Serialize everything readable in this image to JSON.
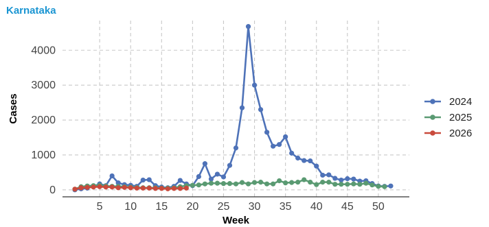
{
  "chart_data": {
    "type": "line",
    "title": "Karnataka",
    "xlabel": "Week",
    "ylabel": "Cases",
    "xlim": [
      -1,
      55
    ],
    "ylim": [
      -200,
      4850
    ],
    "x_ticks": [
      5,
      10,
      15,
      20,
      25,
      30,
      35,
      40,
      45,
      50
    ],
    "y_ticks": [
      0,
      1000,
      2000,
      3000,
      4000
    ],
    "grid": true,
    "legend_position": "right",
    "series": [
      {
        "name": "2024",
        "color": "#4e72b8",
        "x": [
          1,
          2,
          3,
          4,
          5,
          6,
          7,
          8,
          9,
          10,
          11,
          12,
          13,
          14,
          15,
          16,
          17,
          18,
          19,
          20,
          21,
          22,
          23,
          24,
          25,
          26,
          27,
          28,
          29,
          30,
          31,
          32,
          33,
          34,
          35,
          36,
          37,
          38,
          39,
          40,
          41,
          42,
          43,
          44,
          45,
          46,
          47,
          48,
          49,
          50,
          51,
          52
        ],
        "y": [
          0,
          30,
          50,
          100,
          170,
          120,
          400,
          200,
          150,
          130,
          100,
          280,
          290,
          120,
          80,
          60,
          100,
          270,
          170,
          120,
          380,
          750,
          310,
          450,
          370,
          700,
          1200,
          2350,
          4680,
          3000,
          2300,
          1650,
          1250,
          1300,
          1520,
          1050,
          910,
          840,
          830,
          680,
          420,
          430,
          330,
          280,
          320,
          310,
          250,
          260,
          180,
          110,
          100,
          110
        ]
      },
      {
        "name": "2025",
        "color": "#5a9a72",
        "x": [
          1,
          2,
          3,
          4,
          5,
          6,
          7,
          8,
          9,
          10,
          11,
          12,
          13,
          14,
          15,
          16,
          17,
          18,
          19,
          20,
          21,
          22,
          23,
          24,
          25,
          26,
          27,
          28,
          29,
          30,
          31,
          32,
          33,
          34,
          35,
          36,
          37,
          38,
          39,
          40,
          41,
          42,
          43,
          44,
          45,
          46,
          47,
          48,
          49,
          50,
          51
        ],
        "y": [
          20,
          90,
          110,
          120,
          130,
          110,
          100,
          100,
          90,
          80,
          70,
          60,
          60,
          60,
          50,
          50,
          60,
          90,
          120,
          130,
          140,
          170,
          190,
          190,
          180,
          180,
          170,
          210,
          170,
          210,
          220,
          170,
          170,
          260,
          200,
          210,
          220,
          290,
          220,
          150,
          220,
          220,
          160,
          160,
          160,
          170,
          160,
          190,
          140,
          100,
          90
        ]
      },
      {
        "name": "2026",
        "color": "#c94a3c",
        "x": [
          1,
          2,
          3,
          4,
          5,
          6,
          7,
          8,
          9,
          10,
          11,
          12,
          13,
          14,
          15,
          16,
          17,
          18,
          19
        ],
        "y": [
          20,
          60,
          70,
          80,
          90,
          80,
          80,
          60,
          70,
          60,
          50,
          50,
          50,
          40,
          40,
          30,
          40,
          40,
          50
        ]
      }
    ]
  }
}
